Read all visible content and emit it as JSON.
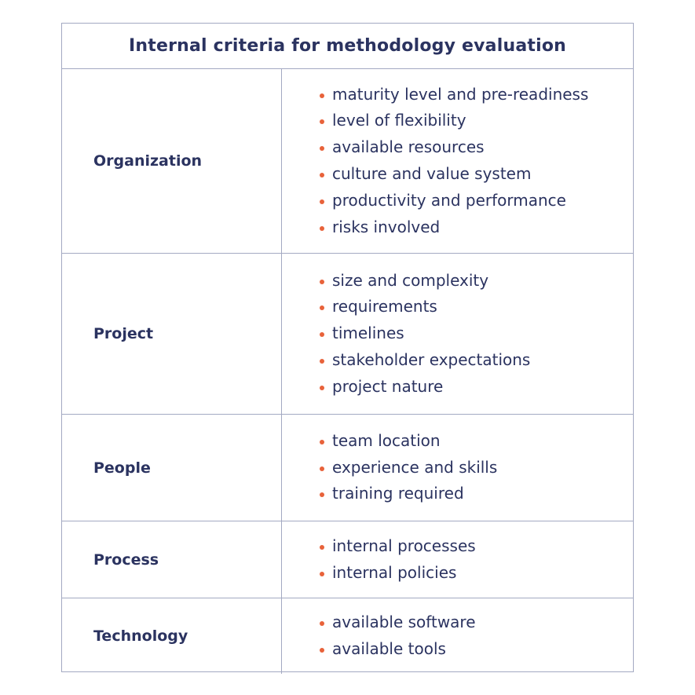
{
  "title": "Internal criteria for methodology evaluation",
  "colors": {
    "text": "#2b3360",
    "bullet": "#e8623a",
    "border": "#a3a9c2"
  },
  "rows": [
    {
      "category": "Organization",
      "items": [
        "maturity level and pre-readiness",
        "level of flexibility",
        "available resources",
        "culture and value system",
        "productivity and performance",
        "risks involved"
      ]
    },
    {
      "category": "Project",
      "items": [
        "size and complexity",
        "requirements",
        "timelines",
        "stakeholder expectations",
        "project nature"
      ]
    },
    {
      "category": "People",
      "items": [
        "team location",
        "experience and skills",
        "training required"
      ]
    },
    {
      "category": "Process",
      "items": [
        "internal processes",
        "internal policies"
      ]
    },
    {
      "category": "Technology",
      "items": [
        "available software",
        "available tools"
      ]
    }
  ]
}
